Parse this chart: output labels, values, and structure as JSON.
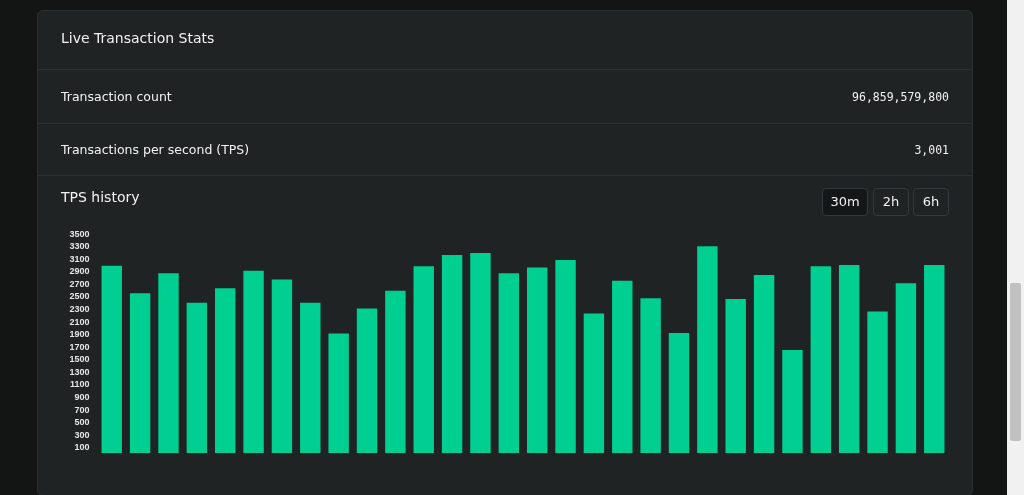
{
  "chart_data": {
    "type": "bar",
    "title": "Live Transaction Stats",
    "subtitle": "TPS history",
    "annotations": [
      "Transaction count",
      "96,859,579,800",
      "Transactions per second (TPS)",
      "3,001",
      "30m",
      "2h",
      "6h"
    ],
    "categories": [
      null,
      null,
      null,
      null,
      null,
      null,
      null,
      null,
      null,
      null,
      null,
      null,
      null,
      null,
      null,
      null,
      null,
      null,
      null,
      null,
      null,
      null,
      null,
      null,
      null,
      null,
      null,
      null,
      null,
      null
    ],
    "values": [
      2980,
      2540,
      2860,
      2390,
      2620,
      2900,
      2760,
      2390,
      1900,
      2300,
      2580,
      2970,
      3150,
      3180,
      2860,
      2950,
      3070,
      2220,
      2740,
      2460,
      1910,
      3290,
      2450,
      2830,
      1640,
      2970,
      2990,
      2250,
      2700,
      2990
    ],
    "color": "#00cf92",
    "ylim": [
      0,
      3500
    ],
    "yticks": [
      100,
      300,
      500,
      700,
      900,
      1100,
      1300,
      1500,
      1700,
      1900,
      2100,
      2300,
      2500,
      2700,
      2900,
      3100,
      3300,
      3500
    ],
    "tick_labels": "y"
  }
}
